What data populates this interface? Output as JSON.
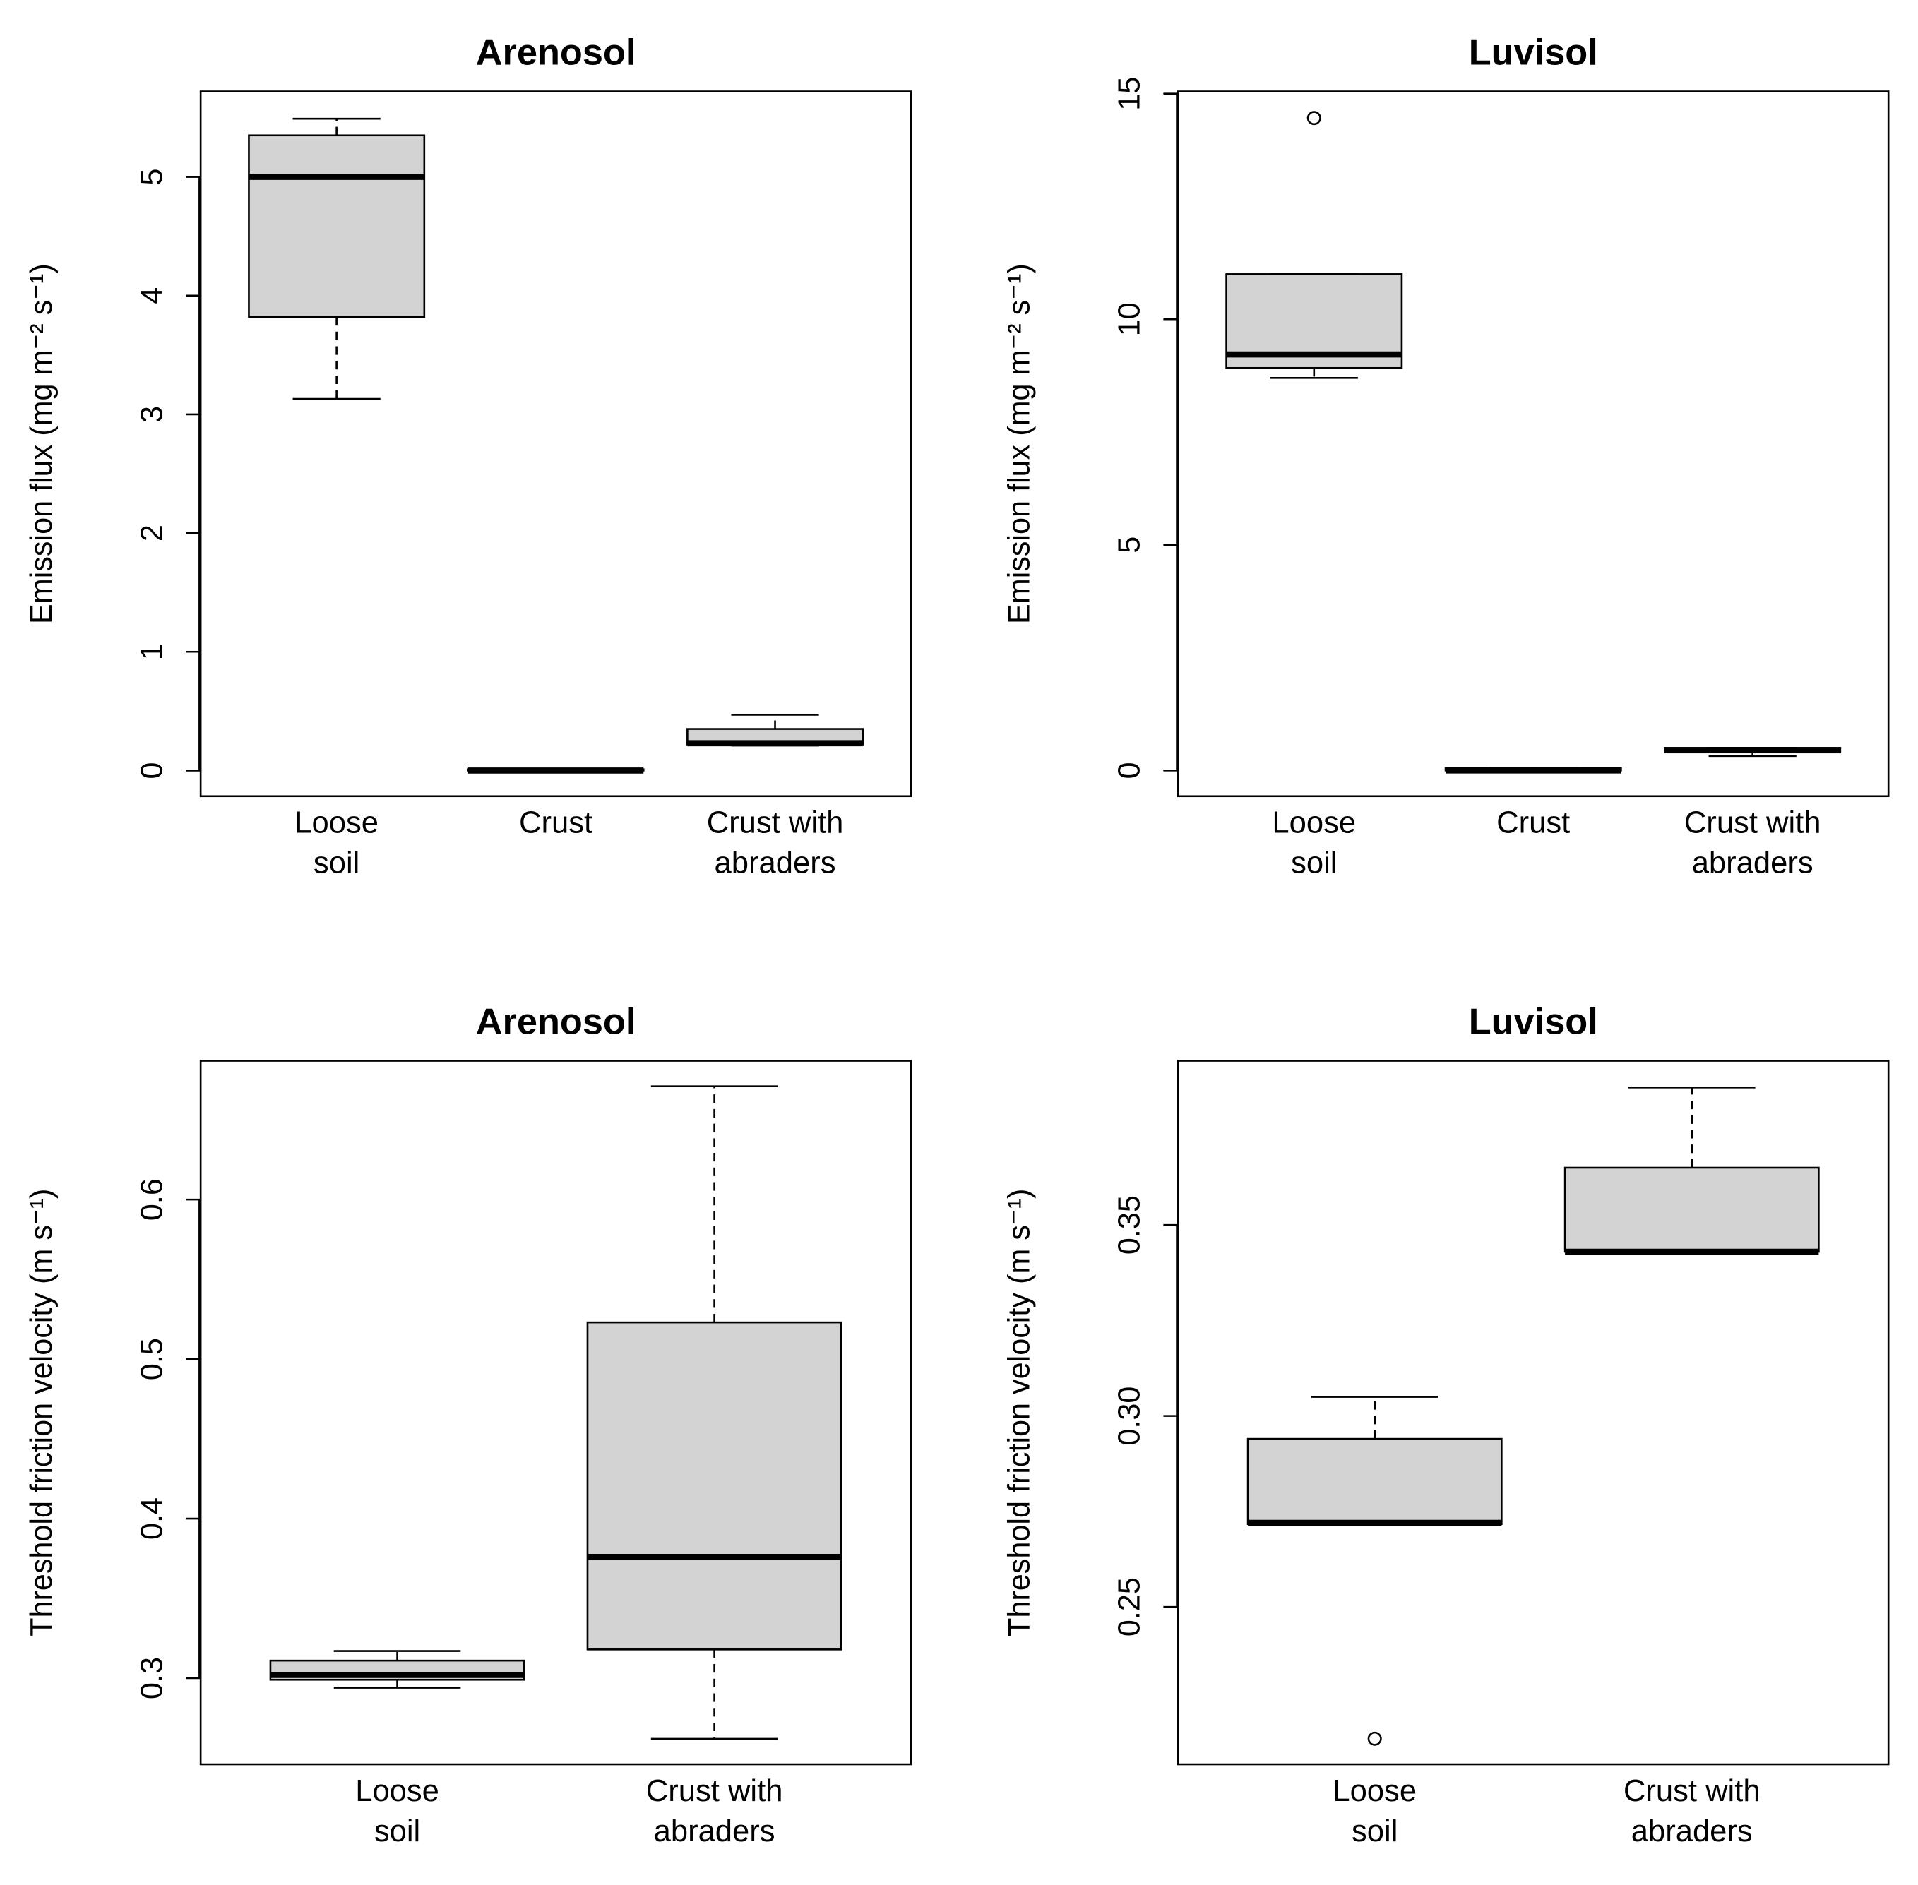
{
  "chart_data": [
    {
      "type": "box",
      "title": "Arenosol",
      "y_label": "Emission flux (mg m⁻² s⁻¹)",
      "categories": [
        [
          "Loose",
          "soil"
        ],
        [
          "Crust"
        ],
        [
          "Crust with",
          "abraders"
        ]
      ],
      "boxes": [
        {
          "min": 3.13,
          "q1": 3.82,
          "median": 5.0,
          "q3": 5.35,
          "max": 5.49
        },
        {
          "min": 0,
          "q1": 0,
          "median": 0,
          "q3": 0.01,
          "max": 0.01
        },
        {
          "min": 0.21,
          "q1": 0.22,
          "median": 0.23,
          "q3": 0.35,
          "max": 0.47
        }
      ],
      "color": "#d3d3d3",
      "ylim": [
        -0.216,
        5.72
      ],
      "yticks": [
        0,
        1,
        2,
        3,
        4,
        5
      ]
    },
    {
      "type": "box",
      "title": "Luvisol",
      "y_label": "Emission flux (mg m⁻² s⁻¹)",
      "categories": [
        [
          "Loose",
          "soil"
        ],
        [
          "Crust"
        ],
        [
          "Crust with",
          "abraders"
        ]
      ],
      "boxes": [
        {
          "min": 8.7,
          "q1": 8.92,
          "median": 9.22,
          "q3": 11.0,
          "max": 11.0,
          "outliers": [
            14.46
          ]
        },
        {
          "min": 0,
          "q1": 0,
          "median": 0,
          "q3": 0.05,
          "max": 0.05
        },
        {
          "min": 0.32,
          "q1": 0.4,
          "median": 0.45,
          "q3": 0.5,
          "max": 0.5
        }
      ],
      "color": "#d3d3d3",
      "ylim": [
        -0.57,
        15.05
      ],
      "yticks": [
        0,
        5,
        10,
        15
      ]
    },
    {
      "type": "box",
      "title": "Arenosol",
      "y_label": "Threshold friction velocity (m s⁻¹)",
      "categories": [
        [
          "Loose",
          "soil"
        ],
        [
          "Crust with",
          "abraders"
        ]
      ],
      "boxes": [
        {
          "min": 0.294,
          "q1": 0.299,
          "median": 0.302,
          "q3": 0.311,
          "max": 0.317
        },
        {
          "min": 0.262,
          "q1": 0.318,
          "median": 0.376,
          "q3": 0.523,
          "max": 0.671
        }
      ],
      "color": "#d3d3d3",
      "ylim": [
        0.246,
        0.687
      ],
      "yticks": [
        0.3,
        0.4,
        0.5,
        0.6
      ]
    },
    {
      "type": "box",
      "title": "Luvisol",
      "y_label": "Threshold friction velocity (m s⁻¹)",
      "categories": [
        [
          "Loose",
          "soil"
        ],
        [
          "Crust with",
          "abraders"
        ]
      ],
      "boxes": [
        {
          "min": 0.2717,
          "q1": 0.2717,
          "median": 0.272,
          "q3": 0.294,
          "max": 0.305,
          "outliers": [
            0.2155
          ]
        },
        {
          "min": 0.343,
          "q1": 0.343,
          "median": 0.343,
          "q3": 0.365,
          "max": 0.386
        }
      ],
      "color": "#d3d3d3",
      "ylim": [
        0.2088,
        0.393
      ],
      "yticks": [
        0.25,
        {
          "value": 0.3,
          "label": "0.30"
        },
        0.35
      ]
    }
  ]
}
